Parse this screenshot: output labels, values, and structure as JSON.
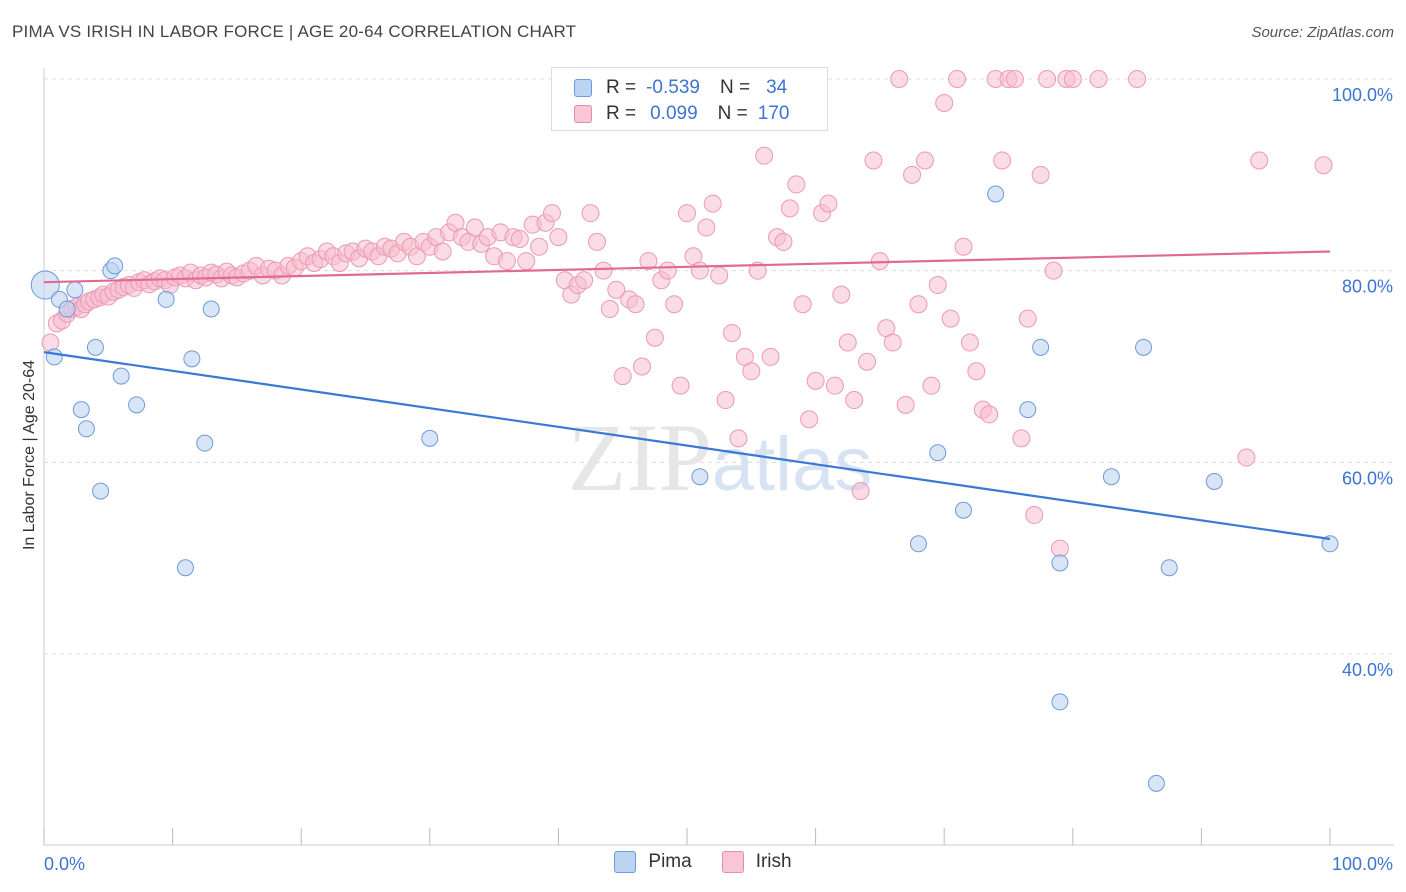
{
  "header": {
    "title": "PIMA VS IRISH IN LABOR FORCE | AGE 20-64 CORRELATION CHART",
    "source": "Source: ZipAtlas.com"
  },
  "watermark": {
    "part1": "ZIP",
    "part2": "atlas"
  },
  "legend": {
    "rows": [
      {
        "r_label": "R =",
        "r_value": "-0.539",
        "n_label": "N =",
        "n_value": "34"
      },
      {
        "r_label": "R =",
        "r_value": "0.099",
        "n_label": "N =",
        "n_value": "170"
      }
    ]
  },
  "chart_data": {
    "type": "scatter",
    "title": "PIMA VS IRISH IN LABOR FORCE | AGE 20-64 CORRELATION CHART",
    "xlabel": "",
    "ylabel": "In Labor Force | Age 20-64",
    "xlim": [
      0,
      100
    ],
    "ylim": [
      20,
      102
    ],
    "x_tick_labels": [
      "0.0%",
      "100.0%"
    ],
    "y_ticks": [
      40,
      60,
      80,
      100
    ],
    "y_tick_labels": [
      "40.0%",
      "60.0%",
      "80.0%",
      "100.0%"
    ],
    "grid": "horizontal dashed",
    "legend_position": "top-center and bottom",
    "colors": {
      "Pima": "#6e9ad9",
      "Irish": "#e88aa8",
      "Pima_line": "#3a78d6",
      "Irish_line": "#e06a94"
    },
    "series": [
      {
        "name": "Pima",
        "r": -0.539,
        "n": 34,
        "trend": {
          "x": [
            0,
            100
          ],
          "y": [
            71.5,
            52.0
          ]
        },
        "points": [
          [
            0.1,
            78.5
          ],
          [
            1.2,
            77.0
          ],
          [
            0.8,
            71.0
          ],
          [
            2.4,
            78.0
          ],
          [
            1.8,
            76.0
          ],
          [
            5.2,
            80.0
          ],
          [
            5.5,
            80.5
          ],
          [
            9.5,
            77.0
          ],
          [
            13.0,
            76.0
          ],
          [
            4.0,
            72.0
          ],
          [
            6.0,
            69.0
          ],
          [
            7.2,
            66.0
          ],
          [
            2.9,
            65.5
          ],
          [
            3.3,
            63.5
          ],
          [
            11.5,
            70.8
          ],
          [
            12.5,
            62.0
          ],
          [
            4.4,
            57.0
          ],
          [
            11.0,
            49.0
          ],
          [
            30.0,
            62.5
          ],
          [
            51.0,
            58.5
          ],
          [
            68.0,
            51.5
          ],
          [
            69.5,
            61.0
          ],
          [
            71.5,
            55.0
          ],
          [
            74.0,
            88.0
          ],
          [
            76.5,
            65.5
          ],
          [
            77.5,
            72.0
          ],
          [
            79.0,
            49.5
          ],
          [
            83.0,
            58.5
          ],
          [
            85.5,
            72.0
          ],
          [
            87.5,
            49.0
          ],
          [
            91.0,
            58.0
          ],
          [
            100.0,
            51.5
          ],
          [
            79.0,
            35.0
          ],
          [
            86.5,
            26.5
          ]
        ]
      },
      {
        "name": "Irish",
        "r": 0.099,
        "n": 170,
        "trend": {
          "x": [
            0,
            100
          ],
          "y": [
            78.8,
            82.0
          ]
        },
        "points": [
          [
            0.5,
            72.5
          ],
          [
            1.0,
            74.5
          ],
          [
            1.4,
            74.8
          ],
          [
            1.8,
            75.5
          ],
          [
            2.2,
            76.0
          ],
          [
            2.5,
            76.2
          ],
          [
            2.9,
            76.0
          ],
          [
            3.2,
            76.5
          ],
          [
            3.5,
            76.8
          ],
          [
            3.9,
            77.0
          ],
          [
            4.3,
            77.2
          ],
          [
            4.6,
            77.5
          ],
          [
            5.0,
            77.3
          ],
          [
            5.4,
            77.8
          ],
          [
            5.8,
            78.0
          ],
          [
            6.2,
            78.3
          ],
          [
            6.6,
            78.5
          ],
          [
            7.0,
            78.2
          ],
          [
            7.4,
            78.8
          ],
          [
            7.8,
            79.0
          ],
          [
            8.2,
            78.6
          ],
          [
            8.6,
            78.9
          ],
          [
            9.0,
            79.2
          ],
          [
            9.4,
            79.0
          ],
          [
            9.8,
            78.5
          ],
          [
            10.2,
            79.3
          ],
          [
            10.6,
            79.5
          ],
          [
            11.0,
            79.2
          ],
          [
            11.4,
            79.8
          ],
          [
            11.8,
            79.0
          ],
          [
            12.2,
            79.5
          ],
          [
            12.6,
            79.3
          ],
          [
            13.0,
            79.8
          ],
          [
            13.4,
            79.6
          ],
          [
            13.8,
            79.2
          ],
          [
            14.2,
            79.9
          ],
          [
            14.6,
            79.5
          ],
          [
            15.0,
            79.3
          ],
          [
            15.5,
            79.7
          ],
          [
            16.0,
            80.0
          ],
          [
            16.5,
            80.5
          ],
          [
            17.0,
            79.5
          ],
          [
            17.5,
            80.2
          ],
          [
            18.0,
            80.0
          ],
          [
            18.5,
            79.5
          ],
          [
            19.0,
            80.5
          ],
          [
            19.5,
            80.3
          ],
          [
            20.0,
            81.0
          ],
          [
            20.5,
            81.5
          ],
          [
            21.0,
            80.8
          ],
          [
            21.5,
            81.2
          ],
          [
            22.0,
            82.0
          ],
          [
            22.5,
            81.5
          ],
          [
            23.0,
            80.8
          ],
          [
            23.5,
            81.8
          ],
          [
            24.0,
            82.0
          ],
          [
            24.5,
            81.3
          ],
          [
            25.0,
            82.3
          ],
          [
            25.5,
            82.0
          ],
          [
            26.0,
            81.5
          ],
          [
            26.5,
            82.5
          ],
          [
            27.0,
            82.3
          ],
          [
            27.5,
            81.8
          ],
          [
            28.0,
            83.0
          ],
          [
            28.5,
            82.5
          ],
          [
            29.0,
            81.5
          ],
          [
            29.5,
            83.0
          ],
          [
            30.0,
            82.5
          ],
          [
            30.5,
            83.5
          ],
          [
            31.0,
            82.0
          ],
          [
            31.5,
            84.0
          ],
          [
            32.0,
            85.0
          ],
          [
            32.5,
            83.5
          ],
          [
            33.0,
            83.0
          ],
          [
            33.5,
            84.5
          ],
          [
            34.0,
            82.8
          ],
          [
            34.5,
            83.5
          ],
          [
            35.0,
            81.5
          ],
          [
            35.5,
            84.0
          ],
          [
            36.0,
            81.0
          ],
          [
            36.5,
            83.5
          ],
          [
            37.0,
            83.3
          ],
          [
            37.5,
            81.0
          ],
          [
            38.0,
            84.8
          ],
          [
            38.5,
            82.5
          ],
          [
            39.0,
            85.0
          ],
          [
            39.5,
            86.0
          ],
          [
            40.0,
            83.5
          ],
          [
            40.5,
            79.0
          ],
          [
            41.0,
            77.5
          ],
          [
            41.5,
            78.5
          ],
          [
            42.0,
            79.0
          ],
          [
            42.5,
            86.0
          ],
          [
            43.0,
            83.0
          ],
          [
            43.5,
            80.0
          ],
          [
            44.0,
            76.0
          ],
          [
            44.5,
            78.0
          ],
          [
            45.0,
            69.0
          ],
          [
            45.5,
            77.0
          ],
          [
            46.0,
            76.5
          ],
          [
            46.5,
            70.0
          ],
          [
            47.0,
            81.0
          ],
          [
            47.5,
            73.0
          ],
          [
            48.0,
            79.0
          ],
          [
            48.5,
            80.0
          ],
          [
            49.0,
            76.5
          ],
          [
            49.5,
            68.0
          ],
          [
            50.0,
            86.0
          ],
          [
            50.5,
            81.5
          ],
          [
            51.0,
            80.0
          ],
          [
            51.5,
            84.5
          ],
          [
            52.0,
            87.0
          ],
          [
            52.5,
            79.5
          ],
          [
            53.0,
            66.5
          ],
          [
            53.5,
            73.5
          ],
          [
            54.0,
            62.5
          ],
          [
            54.5,
            71.0
          ],
          [
            55.0,
            69.5
          ],
          [
            55.5,
            80.0
          ],
          [
            56.0,
            92.0
          ],
          [
            56.5,
            71.0
          ],
          [
            57.0,
            83.5
          ],
          [
            57.5,
            83.0
          ],
          [
            58.0,
            86.5
          ],
          [
            58.5,
            89.0
          ],
          [
            59.0,
            76.5
          ],
          [
            59.5,
            64.5
          ],
          [
            60.0,
            68.5
          ],
          [
            60.5,
            86.0
          ],
          [
            61.0,
            87.0
          ],
          [
            61.5,
            68.0
          ],
          [
            62.0,
            77.5
          ],
          [
            62.5,
            72.5
          ],
          [
            63.0,
            66.5
          ],
          [
            63.5,
            57.0
          ],
          [
            64.0,
            70.5
          ],
          [
            64.5,
            91.5
          ],
          [
            65.0,
            81.0
          ],
          [
            65.5,
            74.0
          ],
          [
            66.0,
            72.5
          ],
          [
            66.5,
            100.0
          ],
          [
            67.0,
            66.0
          ],
          [
            67.5,
            90.0
          ],
          [
            68.0,
            76.5
          ],
          [
            68.5,
            91.5
          ],
          [
            69.0,
            68.0
          ],
          [
            69.5,
            78.5
          ],
          [
            70.0,
            97.5
          ],
          [
            70.5,
            75.0
          ],
          [
            71.0,
            100.0
          ],
          [
            71.5,
            82.5
          ],
          [
            72.0,
            72.5
          ],
          [
            72.5,
            69.5
          ],
          [
            73.0,
            65.5
          ],
          [
            73.5,
            65.0
          ],
          [
            74.0,
            100.0
          ],
          [
            74.5,
            91.5
          ],
          [
            75.0,
            100.0
          ],
          [
            75.5,
            100.0
          ],
          [
            76.0,
            62.5
          ],
          [
            76.5,
            75.0
          ],
          [
            77.0,
            54.5
          ],
          [
            77.5,
            90.0
          ],
          [
            78.0,
            100.0
          ],
          [
            78.5,
            80.0
          ],
          [
            79.0,
            51.0
          ],
          [
            79.5,
            100.0
          ],
          [
            80.0,
            100.0
          ],
          [
            82.0,
            100.0
          ],
          [
            85.0,
            100.0
          ],
          [
            94.5,
            91.5
          ],
          [
            93.5,
            60.5
          ],
          [
            99.5,
            91.0
          ]
        ]
      }
    ]
  }
}
